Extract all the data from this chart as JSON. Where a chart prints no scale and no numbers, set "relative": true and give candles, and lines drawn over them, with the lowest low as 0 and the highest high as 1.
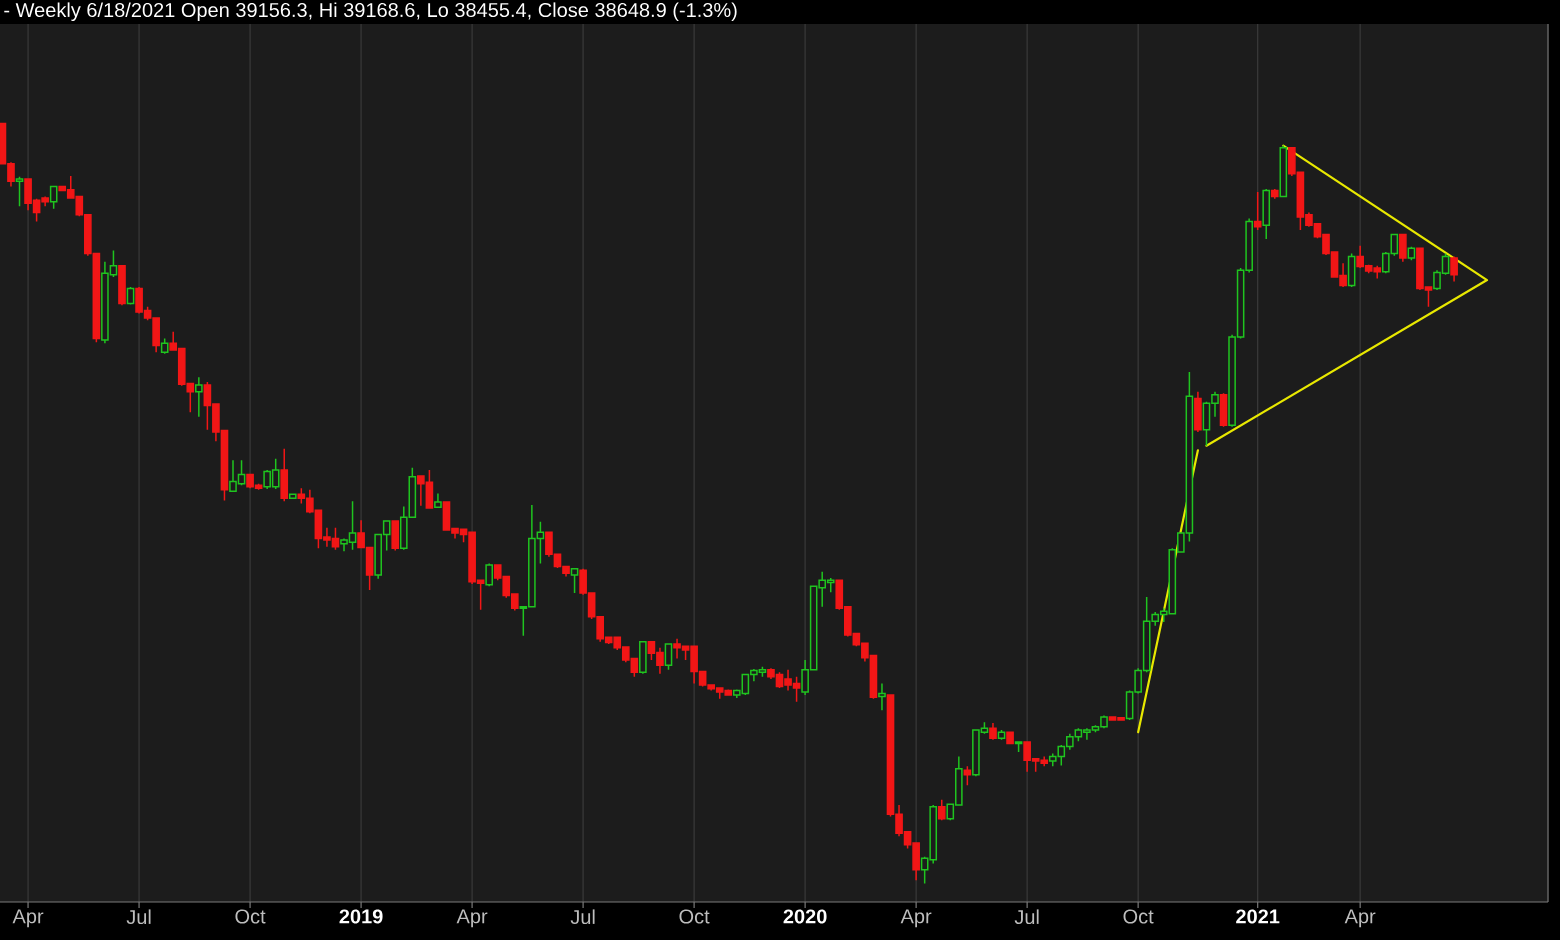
{
  "chart_data": {
    "type": "candlestick",
    "title": "- Weekly 6/18/2021 Open 39156.3, Hi 39168.6, Lo 38455.4, Close 38648.9 (-1.3%)",
    "relative": true,
    "xlim": [
      "2018-03-14",
      "2021-09-03"
    ],
    "xticks": [
      {
        "value": "2018-04-06",
        "label": "Apr"
      },
      {
        "value": "2018-07-06",
        "label": "Jul"
      },
      {
        "value": "2018-10-05",
        "label": "Oct"
      },
      {
        "value": "2019-01-04",
        "label": "2019"
      },
      {
        "value": "2019-04-05",
        "label": "Apr"
      },
      {
        "value": "2019-07-05",
        "label": "Jul"
      },
      {
        "value": "2019-10-04",
        "label": "Oct"
      },
      {
        "value": "2020-01-03",
        "label": "2020"
      },
      {
        "value": "2020-04-03",
        "label": "Apr"
      },
      {
        "value": "2020-07-03",
        "label": "Jul"
      },
      {
        "value": "2020-10-02",
        "label": "Oct"
      },
      {
        "value": "2021-01-08",
        "label": "2021"
      },
      {
        "value": "2021-04-02",
        "label": "Apr"
      }
    ],
    "grid": "x",
    "series": [
      {
        "type": "candlestick",
        "x": [
          "2018-03-16",
          "2018-03-23",
          "2018-03-30",
          "2018-04-06",
          "2018-04-13",
          "2018-04-20",
          "2018-04-27",
          "2018-05-04",
          "2018-05-11",
          "2018-05-18",
          "2018-05-25",
          "2018-06-01",
          "2018-06-08",
          "2018-06-15",
          "2018-06-22",
          "2018-06-29",
          "2018-07-06",
          "2018-07-13",
          "2018-07-20",
          "2018-07-27",
          "2018-08-03",
          "2018-08-10",
          "2018-08-17",
          "2018-08-24",
          "2018-08-31",
          "2018-09-07",
          "2018-09-14",
          "2018-09-21",
          "2018-09-28",
          "2018-10-05",
          "2018-10-12",
          "2018-10-19",
          "2018-10-26",
          "2018-11-02",
          "2018-11-09",
          "2018-11-16",
          "2018-11-23",
          "2018-11-30",
          "2018-12-07",
          "2018-12-14",
          "2018-12-21",
          "2018-12-28",
          "2019-01-04",
          "2019-01-11",
          "2019-01-18",
          "2019-01-25",
          "2019-02-01",
          "2019-02-08",
          "2019-02-15",
          "2019-02-22",
          "2019-03-01",
          "2019-03-08",
          "2019-03-15",
          "2019-03-22",
          "2019-03-29",
          "2019-04-05",
          "2019-04-12",
          "2019-04-19",
          "2019-04-26",
          "2019-05-03",
          "2019-05-10",
          "2019-05-17",
          "2019-05-24",
          "2019-05-31",
          "2019-06-07",
          "2019-06-14",
          "2019-06-21",
          "2019-06-28",
          "2019-07-05",
          "2019-07-12",
          "2019-07-19",
          "2019-07-26",
          "2019-08-02",
          "2019-08-09",
          "2019-08-16",
          "2019-08-23",
          "2019-08-30",
          "2019-09-06",
          "2019-09-13",
          "2019-09-20",
          "2019-09-27",
          "2019-10-04",
          "2019-10-11",
          "2019-10-18",
          "2019-10-25",
          "2019-11-01",
          "2019-11-08",
          "2019-11-15",
          "2019-11-22",
          "2019-11-29",
          "2019-12-06",
          "2019-12-13",
          "2019-12-20",
          "2019-12-27",
          "2020-01-03",
          "2020-01-10",
          "2020-01-17",
          "2020-01-24",
          "2020-01-31",
          "2020-02-07",
          "2020-02-14",
          "2020-02-21",
          "2020-02-28",
          "2020-03-06",
          "2020-03-13",
          "2020-03-20",
          "2020-03-27",
          "2020-04-03",
          "2020-04-10",
          "2020-04-17",
          "2020-04-24",
          "2020-05-01",
          "2020-05-08",
          "2020-05-15",
          "2020-05-22",
          "2020-05-29",
          "2020-06-05",
          "2020-06-12",
          "2020-06-19",
          "2020-06-26",
          "2020-07-03",
          "2020-07-10",
          "2020-07-17",
          "2020-07-24",
          "2020-07-31",
          "2020-08-07",
          "2020-08-14",
          "2020-08-21",
          "2020-08-28",
          "2020-09-04",
          "2020-09-11",
          "2020-09-18",
          "2020-09-25",
          "2020-10-02",
          "2020-10-09",
          "2020-10-16",
          "2020-10-23",
          "2020-10-30",
          "2020-11-06",
          "2020-11-13",
          "2020-11-20",
          "2020-11-27",
          "2020-12-04",
          "2020-12-11",
          "2020-12-18",
          "2020-12-25",
          "2021-01-01",
          "2021-01-08",
          "2021-01-15",
          "2021-01-22",
          "2021-01-29",
          "2021-02-05",
          "2021-02-12",
          "2021-02-19",
          "2021-02-26",
          "2021-03-05",
          "2021-03-12",
          "2021-03-19",
          "2021-03-26",
          "2021-04-02",
          "2021-04-09",
          "2021-04-16",
          "2021-04-23",
          "2021-04-30",
          "2021-05-07",
          "2021-05-14",
          "2021-05-21",
          "2021-05-28",
          "2021-06-04",
          "2021-06-11",
          "2021-06-18"
        ],
        "ohlc": [
          [
            1.0,
            1.0,
            0.946,
            0.947
          ],
          [
            0.947,
            0.949,
            0.917,
            0.924
          ],
          [
            0.924,
            0.93,
            0.891,
            0.927
          ],
          [
            0.927,
            0.928,
            0.886,
            0.895
          ],
          [
            0.899,
            0.901,
            0.871,
            0.883
          ],
          [
            0.902,
            0.904,
            0.891,
            0.897
          ],
          [
            0.897,
            0.918,
            0.888,
            0.917
          ],
          [
            0.917,
            0.918,
            0.911,
            0.912
          ],
          [
            0.913,
            0.931,
            0.901,
            0.902
          ],
          [
            0.904,
            0.905,
            0.878,
            0.88
          ],
          [
            0.88,
            0.881,
            0.826,
            0.829
          ],
          [
            0.829,
            0.83,
            0.712,
            0.717
          ],
          [
            0.715,
            0.818,
            0.711,
            0.803
          ],
          [
            0.801,
            0.833,
            0.798,
            0.813
          ],
          [
            0.813,
            0.813,
            0.761,
            0.763
          ],
          [
            0.763,
            0.785,
            0.762,
            0.783
          ],
          [
            0.783,
            0.785,
            0.75,
            0.752
          ],
          [
            0.754,
            0.759,
            0.741,
            0.744
          ],
          [
            0.744,
            0.744,
            0.699,
            0.708
          ],
          [
            0.699,
            0.717,
            0.697,
            0.711
          ],
          [
            0.711,
            0.726,
            0.701,
            0.702
          ],
          [
            0.704,
            0.704,
            0.655,
            0.657
          ],
          [
            0.658,
            0.658,
            0.62,
            0.647
          ],
          [
            0.647,
            0.666,
            0.614,
            0.656
          ],
          [
            0.656,
            0.66,
            0.597,
            0.629
          ],
          [
            0.631,
            0.631,
            0.582,
            0.594
          ],
          [
            0.596,
            0.596,
            0.504,
            0.518
          ],
          [
            0.516,
            0.557,
            0.515,
            0.529
          ],
          [
            0.526,
            0.557,
            0.524,
            0.538
          ],
          [
            0.538,
            0.539,
            0.52,
            0.522
          ],
          [
            0.524,
            0.526,
            0.518,
            0.52
          ],
          [
            0.522,
            0.544,
            0.519,
            0.542
          ],
          [
            0.522,
            0.559,
            0.519,
            0.544
          ],
          [
            0.544,
            0.572,
            0.503,
            0.507
          ],
          [
            0.507,
            0.512,
            0.507,
            0.512
          ],
          [
            0.512,
            0.52,
            0.5,
            0.507
          ],
          [
            0.507,
            0.518,
            0.487,
            0.489
          ],
          [
            0.491,
            0.491,
            0.441,
            0.454
          ],
          [
            0.456,
            0.468,
            0.443,
            0.452
          ],
          [
            0.454,
            0.468,
            0.439,
            0.443
          ],
          [
            0.447,
            0.454,
            0.437,
            0.452
          ],
          [
            0.449,
            0.503,
            0.439,
            0.461
          ],
          [
            0.461,
            0.478,
            0.441,
            0.442
          ],
          [
            0.442,
            0.442,
            0.386,
            0.406
          ],
          [
            0.406,
            0.46,
            0.401,
            0.459
          ],
          [
            0.459,
            0.477,
            0.438,
            0.477
          ],
          [
            0.477,
            0.478,
            0.438,
            0.441
          ],
          [
            0.441,
            0.496,
            0.439,
            0.482
          ],
          [
            0.482,
            0.547,
            0.481,
            0.535
          ],
          [
            0.536,
            0.536,
            0.497,
            0.526
          ],
          [
            0.528,
            0.544,
            0.493,
            0.494
          ],
          [
            0.495,
            0.513,
            0.494,
            0.502
          ],
          [
            0.502,
            0.502,
            0.464,
            0.465
          ],
          [
            0.467,
            0.468,
            0.454,
            0.461
          ],
          [
            0.466,
            0.467,
            0.449,
            0.459
          ],
          [
            0.462,
            0.462,
            0.394,
            0.397
          ],
          [
            0.399,
            0.399,
            0.36,
            0.395
          ],
          [
            0.393,
            0.421,
            0.391,
            0.419
          ],
          [
            0.419,
            0.42,
            0.399,
            0.402
          ],
          [
            0.404,
            0.405,
            0.376,
            0.379
          ],
          [
            0.381,
            0.381,
            0.359,
            0.362
          ],
          [
            0.362,
            0.365,
            0.326,
            0.364
          ],
          [
            0.364,
            0.498,
            0.363,
            0.454
          ],
          [
            0.454,
            0.476,
            0.421,
            0.462
          ],
          [
            0.462,
            0.462,
            0.43,
            0.433
          ],
          [
            0.433,
            0.434,
            0.415,
            0.417
          ],
          [
            0.417,
            0.418,
            0.404,
            0.408
          ],
          [
            0.406,
            0.415,
            0.382,
            0.414
          ],
          [
            0.412,
            0.414,
            0.38,
            0.382
          ],
          [
            0.382,
            0.383,
            0.348,
            0.351
          ],
          [
            0.351,
            0.352,
            0.318,
            0.322
          ],
          [
            0.324,
            0.325,
            0.315,
            0.317
          ],
          [
            0.324,
            0.325,
            0.307,
            0.31
          ],
          [
            0.311,
            0.311,
            0.291,
            0.294
          ],
          [
            0.296,
            0.297,
            0.272,
            0.278
          ],
          [
            0.278,
            0.318,
            0.276,
            0.318
          ],
          [
            0.318,
            0.318,
            0.294,
            0.303
          ],
          [
            0.304,
            0.31,
            0.276,
            0.287
          ],
          [
            0.287,
            0.315,
            0.281,
            0.315
          ],
          [
            0.315,
            0.322,
            0.296,
            0.31
          ],
          [
            0.312,
            0.312,
            0.294,
            0.307
          ],
          [
            0.312,
            0.313,
            0.263,
            0.279
          ],
          [
            0.279,
            0.279,
            0.259,
            0.261
          ],
          [
            0.261,
            0.262,
            0.254,
            0.256
          ],
          [
            0.257,
            0.258,
            0.243,
            0.252
          ],
          [
            0.254,
            0.255,
            0.247,
            0.248
          ],
          [
            0.248,
            0.255,
            0.244,
            0.254
          ],
          [
            0.25,
            0.276,
            0.248,
            0.275
          ],
          [
            0.275,
            0.282,
            0.266,
            0.28
          ],
          [
            0.278,
            0.285,
            0.272,
            0.281
          ],
          [
            0.281,
            0.283,
            0.269,
            0.272
          ],
          [
            0.275,
            0.278,
            0.257,
            0.259
          ],
          [
            0.269,
            0.281,
            0.254,
            0.261
          ],
          [
            0.263,
            0.272,
            0.239,
            0.257
          ],
          [
            0.252,
            0.294,
            0.248,
            0.281
          ],
          [
            0.281,
            0.391,
            0.281,
            0.391
          ],
          [
            0.389,
            0.41,
            0.364,
            0.399
          ],
          [
            0.396,
            0.402,
            0.383,
            0.399
          ],
          [
            0.399,
            0.4,
            0.36,
            0.362
          ],
          [
            0.364,
            0.365,
            0.325,
            0.327
          ],
          [
            0.329,
            0.33,
            0.312,
            0.314
          ],
          [
            0.316,
            0.317,
            0.292,
            0.297
          ],
          [
            0.3,
            0.301,
            0.243,
            0.245
          ],
          [
            0.246,
            0.263,
            0.228,
            0.25
          ],
          [
            0.248,
            0.249,
            0.088,
            0.091
          ],
          [
            0.091,
            0.103,
            0.062,
            0.066
          ],
          [
            0.068,
            0.069,
            0.046,
            0.051
          ],
          [
            0.053,
            0.054,
            0.004,
            0.018
          ],
          [
            0.018,
            0.035,
            0.0,
            0.033
          ],
          [
            0.031,
            0.103,
            0.026,
            0.101
          ],
          [
            0.101,
            0.11,
            0.083,
            0.085
          ],
          [
            0.085,
            0.105,
            0.083,
            0.104
          ],
          [
            0.103,
            0.167,
            0.102,
            0.151
          ],
          [
            0.149,
            0.154,
            0.129,
            0.143
          ],
          [
            0.143,
            0.202,
            0.141,
            0.202
          ],
          [
            0.199,
            0.212,
            0.197,
            0.204
          ],
          [
            0.204,
            0.211,
            0.189,
            0.191
          ],
          [
            0.191,
            0.202,
            0.189,
            0.199
          ],
          [
            0.199,
            0.2,
            0.183,
            0.184
          ],
          [
            0.184,
            0.187,
            0.173,
            0.186
          ],
          [
            0.186,
            0.187,
            0.147,
            0.162
          ],
          [
            0.164,
            0.165,
            0.147,
            0.161
          ],
          [
            0.162,
            0.167,
            0.154,
            0.158
          ],
          [
            0.161,
            0.171,
            0.154,
            0.167
          ],
          [
            0.167,
            0.182,
            0.155,
            0.18
          ],
          [
            0.18,
            0.197,
            0.176,
            0.193
          ],
          [
            0.193,
            0.204,
            0.187,
            0.202
          ],
          [
            0.199,
            0.204,
            0.189,
            0.202
          ],
          [
            0.202,
            0.208,
            0.199,
            0.206
          ],
          [
            0.206,
            0.221,
            0.204,
            0.219
          ],
          [
            0.219,
            0.219,
            0.215,
            0.215
          ],
          [
            0.218,
            0.219,
            0.214,
            0.215
          ],
          [
            0.217,
            0.254,
            0.215,
            0.252
          ],
          [
            0.252,
            0.283,
            0.25,
            0.28
          ],
          [
            0.28,
            0.377,
            0.278,
            0.345
          ],
          [
            0.345,
            0.357,
            0.339,
            0.354
          ],
          [
            0.354,
            0.362,
            0.344,
            0.358
          ],
          [
            0.355,
            0.441,
            0.354,
            0.439
          ],
          [
            0.436,
            0.461,
            0.436,
            0.461
          ],
          [
            0.461,
            0.673,
            0.45,
            0.641
          ],
          [
            0.638,
            0.647,
            0.594,
            0.597
          ],
          [
            0.597,
            0.634,
            0.576,
            0.632
          ],
          [
            0.632,
            0.647,
            0.614,
            0.643
          ],
          [
            0.643,
            0.645,
            0.601,
            0.603
          ],
          [
            0.603,
            0.722,
            0.601,
            0.719
          ],
          [
            0.719,
            0.81,
            0.717,
            0.807
          ],
          [
            0.807,
            0.875,
            0.804,
            0.871
          ],
          [
            0.871,
            0.91,
            0.86,
            0.864
          ],
          [
            0.866,
            0.914,
            0.848,
            0.912
          ],
          [
            0.912,
            0.914,
            0.901,
            0.904
          ],
          [
            0.904,
            0.971,
            0.903,
            0.968
          ],
          [
            0.968,
            0.969,
            0.931,
            0.934
          ],
          [
            0.936,
            0.937,
            0.86,
            0.877
          ],
          [
            0.88,
            0.883,
            0.864,
            0.866
          ],
          [
            0.868,
            0.869,
            0.849,
            0.851
          ],
          [
            0.854,
            0.855,
            0.827,
            0.829
          ],
          [
            0.831,
            0.832,
            0.797,
            0.798
          ],
          [
            0.8,
            0.816,
            0.785,
            0.787
          ],
          [
            0.787,
            0.829,
            0.785,
            0.825
          ],
          [
            0.825,
            0.839,
            0.81,
            0.812
          ],
          [
            0.813,
            0.814,
            0.803,
            0.806
          ],
          [
            0.81,
            0.813,
            0.796,
            0.805
          ],
          [
            0.805,
            0.831,
            0.803,
            0.829
          ],
          [
            0.829,
            0.855,
            0.826,
            0.854
          ],
          [
            0.854,
            0.855,
            0.818,
            0.823
          ],
          [
            0.823,
            0.838,
            0.82,
            0.836
          ],
          [
            0.836,
            0.837,
            0.781,
            0.783
          ],
          [
            0.785,
            0.786,
            0.759,
            0.781
          ],
          [
            0.783,
            0.807,
            0.781,
            0.804
          ],
          [
            0.803,
            0.829,
            0.801,
            0.825
          ],
          [
            0.823,
            0.825,
            0.792,
            0.801
          ]
        ]
      },
      {
        "type": "line",
        "color": "#e8e800",
        "x": [
          "2020-10-02",
          "2020-11-20"
        ],
        "values": [
          0.199,
          0.57
        ]
      },
      {
        "type": "line",
        "color": "#e8e800",
        "x": [
          "2021-01-29",
          "2021-07-15",
          "2020-11-27"
        ],
        "values": [
          0.971,
          0.794,
          0.576
        ]
      }
    ]
  }
}
